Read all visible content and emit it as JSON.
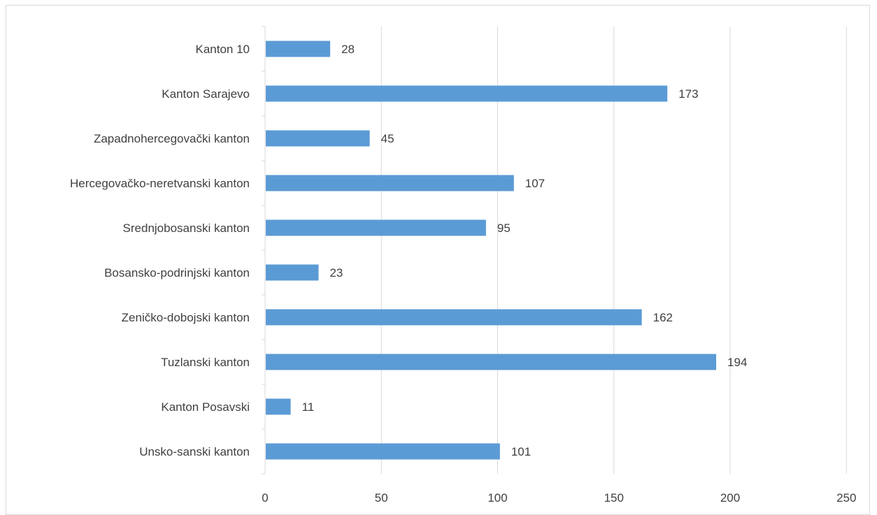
{
  "chart_data": {
    "type": "bar",
    "orientation": "horizontal",
    "categories": [
      "Kanton 10",
      "Kanton Sarajevo",
      "Zapadnohercegovački kanton",
      "Hercegovačko-neretvanski kanton",
      "Srednjobosanski kanton",
      "Bosansko-podrinjski kanton",
      "Zeničko-dobojski kanton",
      "Tuzlanski kanton",
      "Kanton Posavski",
      "Unsko-sanski kanton"
    ],
    "values": [
      28,
      173,
      45,
      107,
      95,
      23,
      162,
      194,
      11,
      101
    ],
    "xticks": [
      0,
      50,
      100,
      150,
      200,
      250
    ],
    "xlim": [
      0,
      250
    ],
    "grid": true,
    "legend": "none",
    "bar_color": "#5b9bd5",
    "grid_color": "#d9d9d9",
    "text_color": "#404040"
  }
}
